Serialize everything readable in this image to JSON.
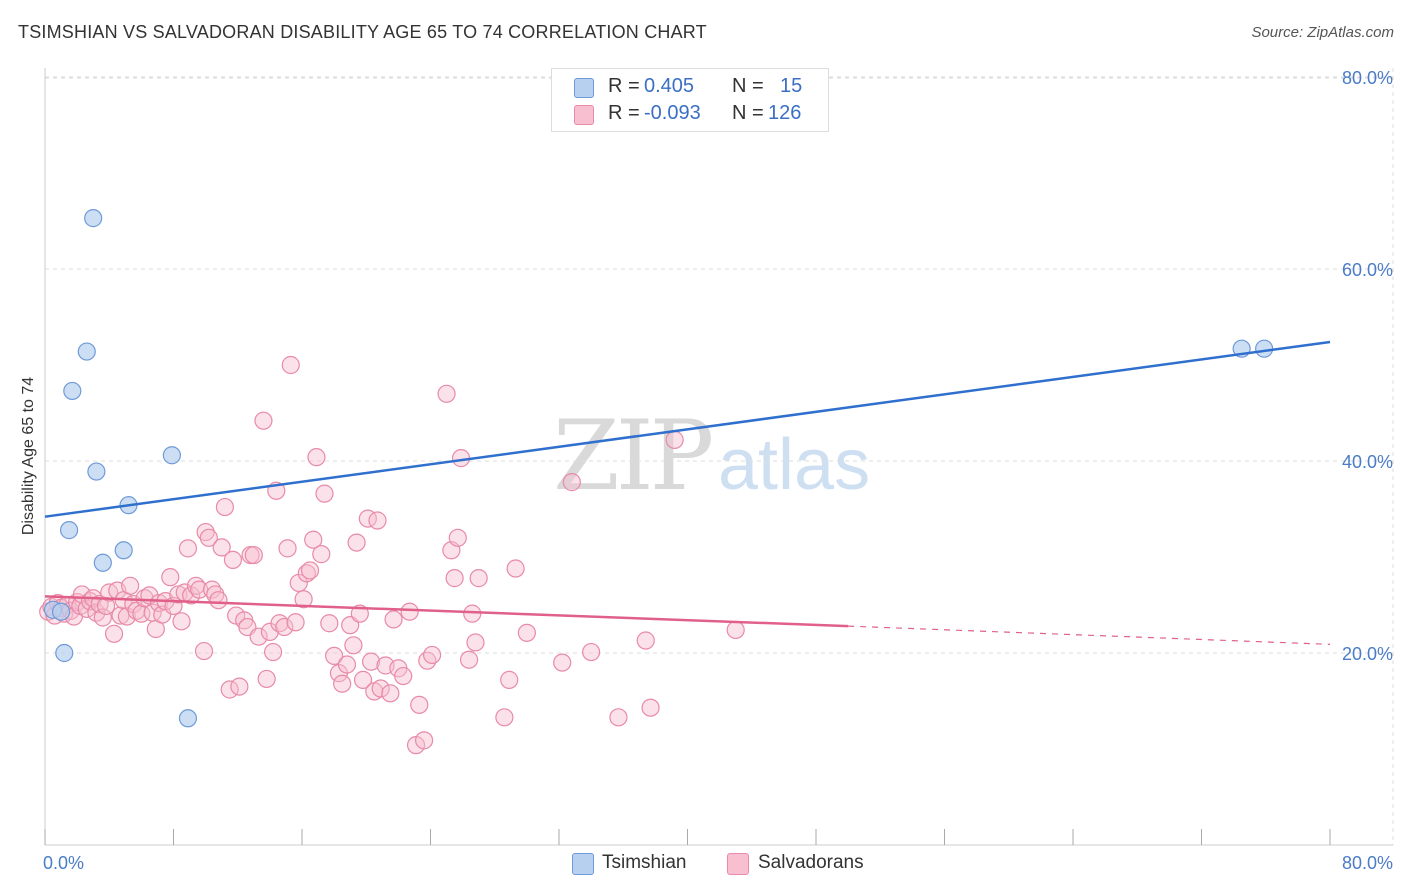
{
  "title": "TSIMSHIAN VS SALVADORAN DISABILITY AGE 65 TO 74 CORRELATION CHART",
  "source": "Source: ZipAtlas.com",
  "watermark": {
    "zip": "ZIP",
    "atlas": "atlas"
  },
  "colors": {
    "tsimshian_fill": "#b7d0f0",
    "tsimshian_stroke": "#6f9ad8",
    "tsimshian_line": "#2f6fce",
    "salvadoran_fill": "#f7bfd0",
    "salvadoran_stroke": "#e88aa8",
    "salvadoran_line": "#e0608a",
    "grid": "#dddddd",
    "tick": "#4a7cc7"
  },
  "legend_top": {
    "rows": [
      {
        "r_label": "R =",
        "r_value": "0.405",
        "n_label": "N =",
        "n_value": "15"
      },
      {
        "r_label": "R =",
        "r_value": "-0.093",
        "n_label": "N =",
        "n_value": "126"
      }
    ]
  },
  "legend_bottom": {
    "items": [
      "Tsimshian",
      "Salvadorans"
    ]
  },
  "chart_data": {
    "type": "scatter",
    "title": "TSIMSHIAN VS SALVADORAN DISABILITY AGE 65 TO 74 CORRELATION CHART",
    "xlabel": "",
    "ylabel": "Disability Age 65 to 74",
    "xlim": [
      0,
      80
    ],
    "ylim": [
      0,
      82
    ],
    "x_tick_labels": [
      "0.0%",
      "80.0%"
    ],
    "y_ticks": [
      20,
      40,
      60,
      80
    ],
    "y_tick_labels": [
      "20.0%",
      "40.0%",
      "60.0%",
      "80.0%"
    ],
    "series": [
      {
        "name": "Tsimshian",
        "points": [
          [
            0.5,
            24.5
          ],
          [
            1.0,
            24.3
          ],
          [
            1.2,
            20
          ],
          [
            1.5,
            32.8
          ],
          [
            1.7,
            47.3
          ],
          [
            2.6,
            51.4
          ],
          [
            3.0,
            65.3
          ],
          [
            3.2,
            38.9
          ],
          [
            3.6,
            29.4
          ],
          [
            4.9,
            30.7
          ],
          [
            5.2,
            35.4
          ],
          [
            7.9,
            40.6
          ],
          [
            8.9,
            13.2
          ],
          [
            74.5,
            51.7
          ],
          [
            75.9,
            51.7
          ]
        ],
        "trend": {
          "x": [
            0,
            80
          ],
          "y": [
            34.2,
            52.4
          ]
        }
      },
      {
        "name": "Salvadorans",
        "points": [
          [
            0.2,
            24.3
          ],
          [
            0.4,
            24.8
          ],
          [
            0.6,
            23.9
          ],
          [
            0.8,
            25.2
          ],
          [
            1.0,
            24.7
          ],
          [
            1.2,
            24.1
          ],
          [
            1.4,
            25.0
          ],
          [
            1.6,
            24.4
          ],
          [
            1.8,
            23.8
          ],
          [
            2.0,
            25.3
          ],
          [
            2.2,
            24.9
          ],
          [
            2.3,
            26.1
          ],
          [
            2.6,
            24.6
          ],
          [
            2.8,
            25.4
          ],
          [
            3.0,
            25.7
          ],
          [
            3.2,
            24.2
          ],
          [
            3.4,
            25.1
          ],
          [
            3.6,
            23.7
          ],
          [
            3.8,
            24.9
          ],
          [
            4.0,
            26.3
          ],
          [
            4.3,
            22.0
          ],
          [
            4.5,
            26.5
          ],
          [
            4.7,
            23.9
          ],
          [
            4.9,
            25.5
          ],
          [
            5.1,
            23.8
          ],
          [
            5.3,
            27.0
          ],
          [
            5.5,
            25.1
          ],
          [
            5.7,
            24.4
          ],
          [
            6.0,
            24.1
          ],
          [
            6.2,
            25.7
          ],
          [
            6.5,
            26.0
          ],
          [
            6.7,
            24.2
          ],
          [
            6.9,
            22.5
          ],
          [
            7.1,
            25.2
          ],
          [
            7.3,
            24.0
          ],
          [
            7.5,
            25.4
          ],
          [
            7.8,
            27.9
          ],
          [
            8.0,
            24.9
          ],
          [
            8.3,
            26.1
          ],
          [
            8.5,
            23.3
          ],
          [
            8.7,
            26.3
          ],
          [
            8.9,
            30.9
          ],
          [
            9.1,
            26.0
          ],
          [
            9.4,
            27.0
          ],
          [
            9.6,
            26.6
          ],
          [
            9.9,
            20.2
          ],
          [
            10.0,
            32.6
          ],
          [
            10.2,
            32.0
          ],
          [
            10.4,
            26.6
          ],
          [
            10.6,
            26.1
          ],
          [
            10.8,
            25.5
          ],
          [
            11.0,
            31.0
          ],
          [
            11.2,
            35.2
          ],
          [
            11.5,
            16.2
          ],
          [
            11.7,
            29.7
          ],
          [
            11.9,
            23.9
          ],
          [
            12.1,
            16.5
          ],
          [
            12.4,
            23.4
          ],
          [
            12.6,
            22.7
          ],
          [
            12.8,
            30.2
          ],
          [
            13.0,
            30.2
          ],
          [
            13.3,
            21.7
          ],
          [
            13.6,
            44.2
          ],
          [
            13.8,
            17.3
          ],
          [
            14.0,
            22.2
          ],
          [
            14.2,
            20.1
          ],
          [
            14.4,
            36.9
          ],
          [
            14.6,
            23.1
          ],
          [
            14.9,
            22.7
          ],
          [
            15.1,
            30.9
          ],
          [
            15.3,
            50.0
          ],
          [
            15.6,
            23.2
          ],
          [
            15.8,
            27.3
          ],
          [
            16.1,
            25.6
          ],
          [
            16.3,
            28.3
          ],
          [
            16.5,
            28.6
          ],
          [
            16.7,
            31.8
          ],
          [
            16.9,
            40.4
          ],
          [
            17.2,
            30.3
          ],
          [
            17.4,
            36.6
          ],
          [
            17.7,
            23.1
          ],
          [
            18.0,
            19.7
          ],
          [
            18.3,
            17.9
          ],
          [
            18.5,
            16.8
          ],
          [
            18.8,
            18.8
          ],
          [
            19.0,
            22.9
          ],
          [
            19.2,
            20.8
          ],
          [
            19.4,
            31.5
          ],
          [
            19.6,
            24.1
          ],
          [
            19.8,
            17.2
          ],
          [
            20.1,
            34.0
          ],
          [
            20.3,
            19.1
          ],
          [
            20.5,
            16.0
          ],
          [
            20.7,
            33.8
          ],
          [
            20.9,
            16.3
          ],
          [
            21.2,
            18.7
          ],
          [
            21.5,
            15.8
          ],
          [
            21.7,
            23.5
          ],
          [
            22.0,
            18.4
          ],
          [
            22.3,
            17.6
          ],
          [
            22.7,
            24.3
          ],
          [
            23.1,
            10.4
          ],
          [
            23.3,
            14.6
          ],
          [
            23.6,
            10.9
          ],
          [
            23.8,
            19.2
          ],
          [
            24.1,
            19.8
          ],
          [
            25.0,
            47.0
          ],
          [
            25.3,
            30.7
          ],
          [
            25.5,
            27.8
          ],
          [
            25.7,
            32.0
          ],
          [
            25.9,
            40.3
          ],
          [
            26.4,
            19.3
          ],
          [
            26.6,
            24.1
          ],
          [
            26.8,
            21.1
          ],
          [
            27.0,
            27.8
          ],
          [
            28.6,
            13.3
          ],
          [
            28.9,
            17.2
          ],
          [
            29.3,
            28.8
          ],
          [
            30.0,
            22.1
          ],
          [
            32.2,
            19.0
          ],
          [
            32.8,
            37.8
          ],
          [
            34.0,
            20.1
          ],
          [
            35.7,
            13.3
          ],
          [
            37.4,
            21.3
          ],
          [
            37.7,
            14.3
          ],
          [
            39.2,
            42.2
          ],
          [
            43.0,
            22.4
          ]
        ],
        "trend": {
          "x": [
            0,
            50
          ],
          "y": [
            25.9,
            22.8
          ]
        },
        "trend_dashed": {
          "x": [
            50,
            80
          ],
          "y": [
            22.8,
            20.9
          ]
        }
      }
    ]
  }
}
